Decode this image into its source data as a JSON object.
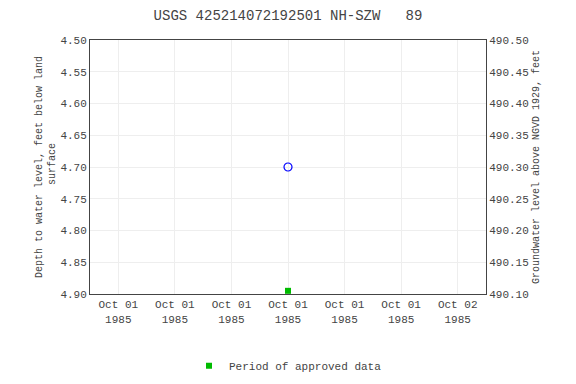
{
  "chart_data": {
    "type": "scatter",
    "title": "USGS 425214072192501 NH-SZW   89",
    "ylabel": "Depth to water level, feet below land\n surface",
    "y2label": "Groundwater level above NGVD 1929, feet",
    "categories": [
      "Oct 01\n1985",
      "Oct 01\n1985",
      "Oct 01\n1985",
      "Oct 01\n1985",
      "Oct 01\n1985",
      "Oct 01\n1985",
      "Oct 02\n1985"
    ],
    "series": [
      {
        "color": "blue",
        "marker": "circle-open",
        "values": [
          null,
          null,
          null,
          4.7,
          null,
          null,
          null
        ]
      },
      {
        "name": "Period of approved data",
        "color": "#00bb00",
        "marker": "square",
        "values": [
          null,
          null,
          null,
          4.895,
          null,
          null,
          null
        ]
      }
    ],
    "ylim": [
      4.9,
      4.5
    ],
    "yticks": [
      {
        "value": 4.5,
        "label": "4.50"
      },
      4.55,
      {
        "value": 4.6,
        "label": "4.60"
      },
      4.65,
      {
        "value": 4.7,
        "label": "4.70"
      },
      4.75,
      {
        "value": 4.8,
        "label": "4.80"
      },
      4.85,
      {
        "value": 4.9,
        "label": "4.90"
      }
    ],
    "y2lim": [
      490.1,
      490.5
    ],
    "y2ticks": [
      {
        "value": 490.5,
        "label": "490.50"
      },
      490.45,
      {
        "value": 490.4,
        "label": "490.40"
      },
      490.35,
      {
        "value": 490.3,
        "label": "490.30"
      },
      490.25,
      {
        "value": 490.2,
        "label": "490.20"
      },
      490.15,
      {
        "value": 490.1,
        "label": "490.10"
      }
    ],
    "grid": true,
    "legend": "bottom"
  }
}
